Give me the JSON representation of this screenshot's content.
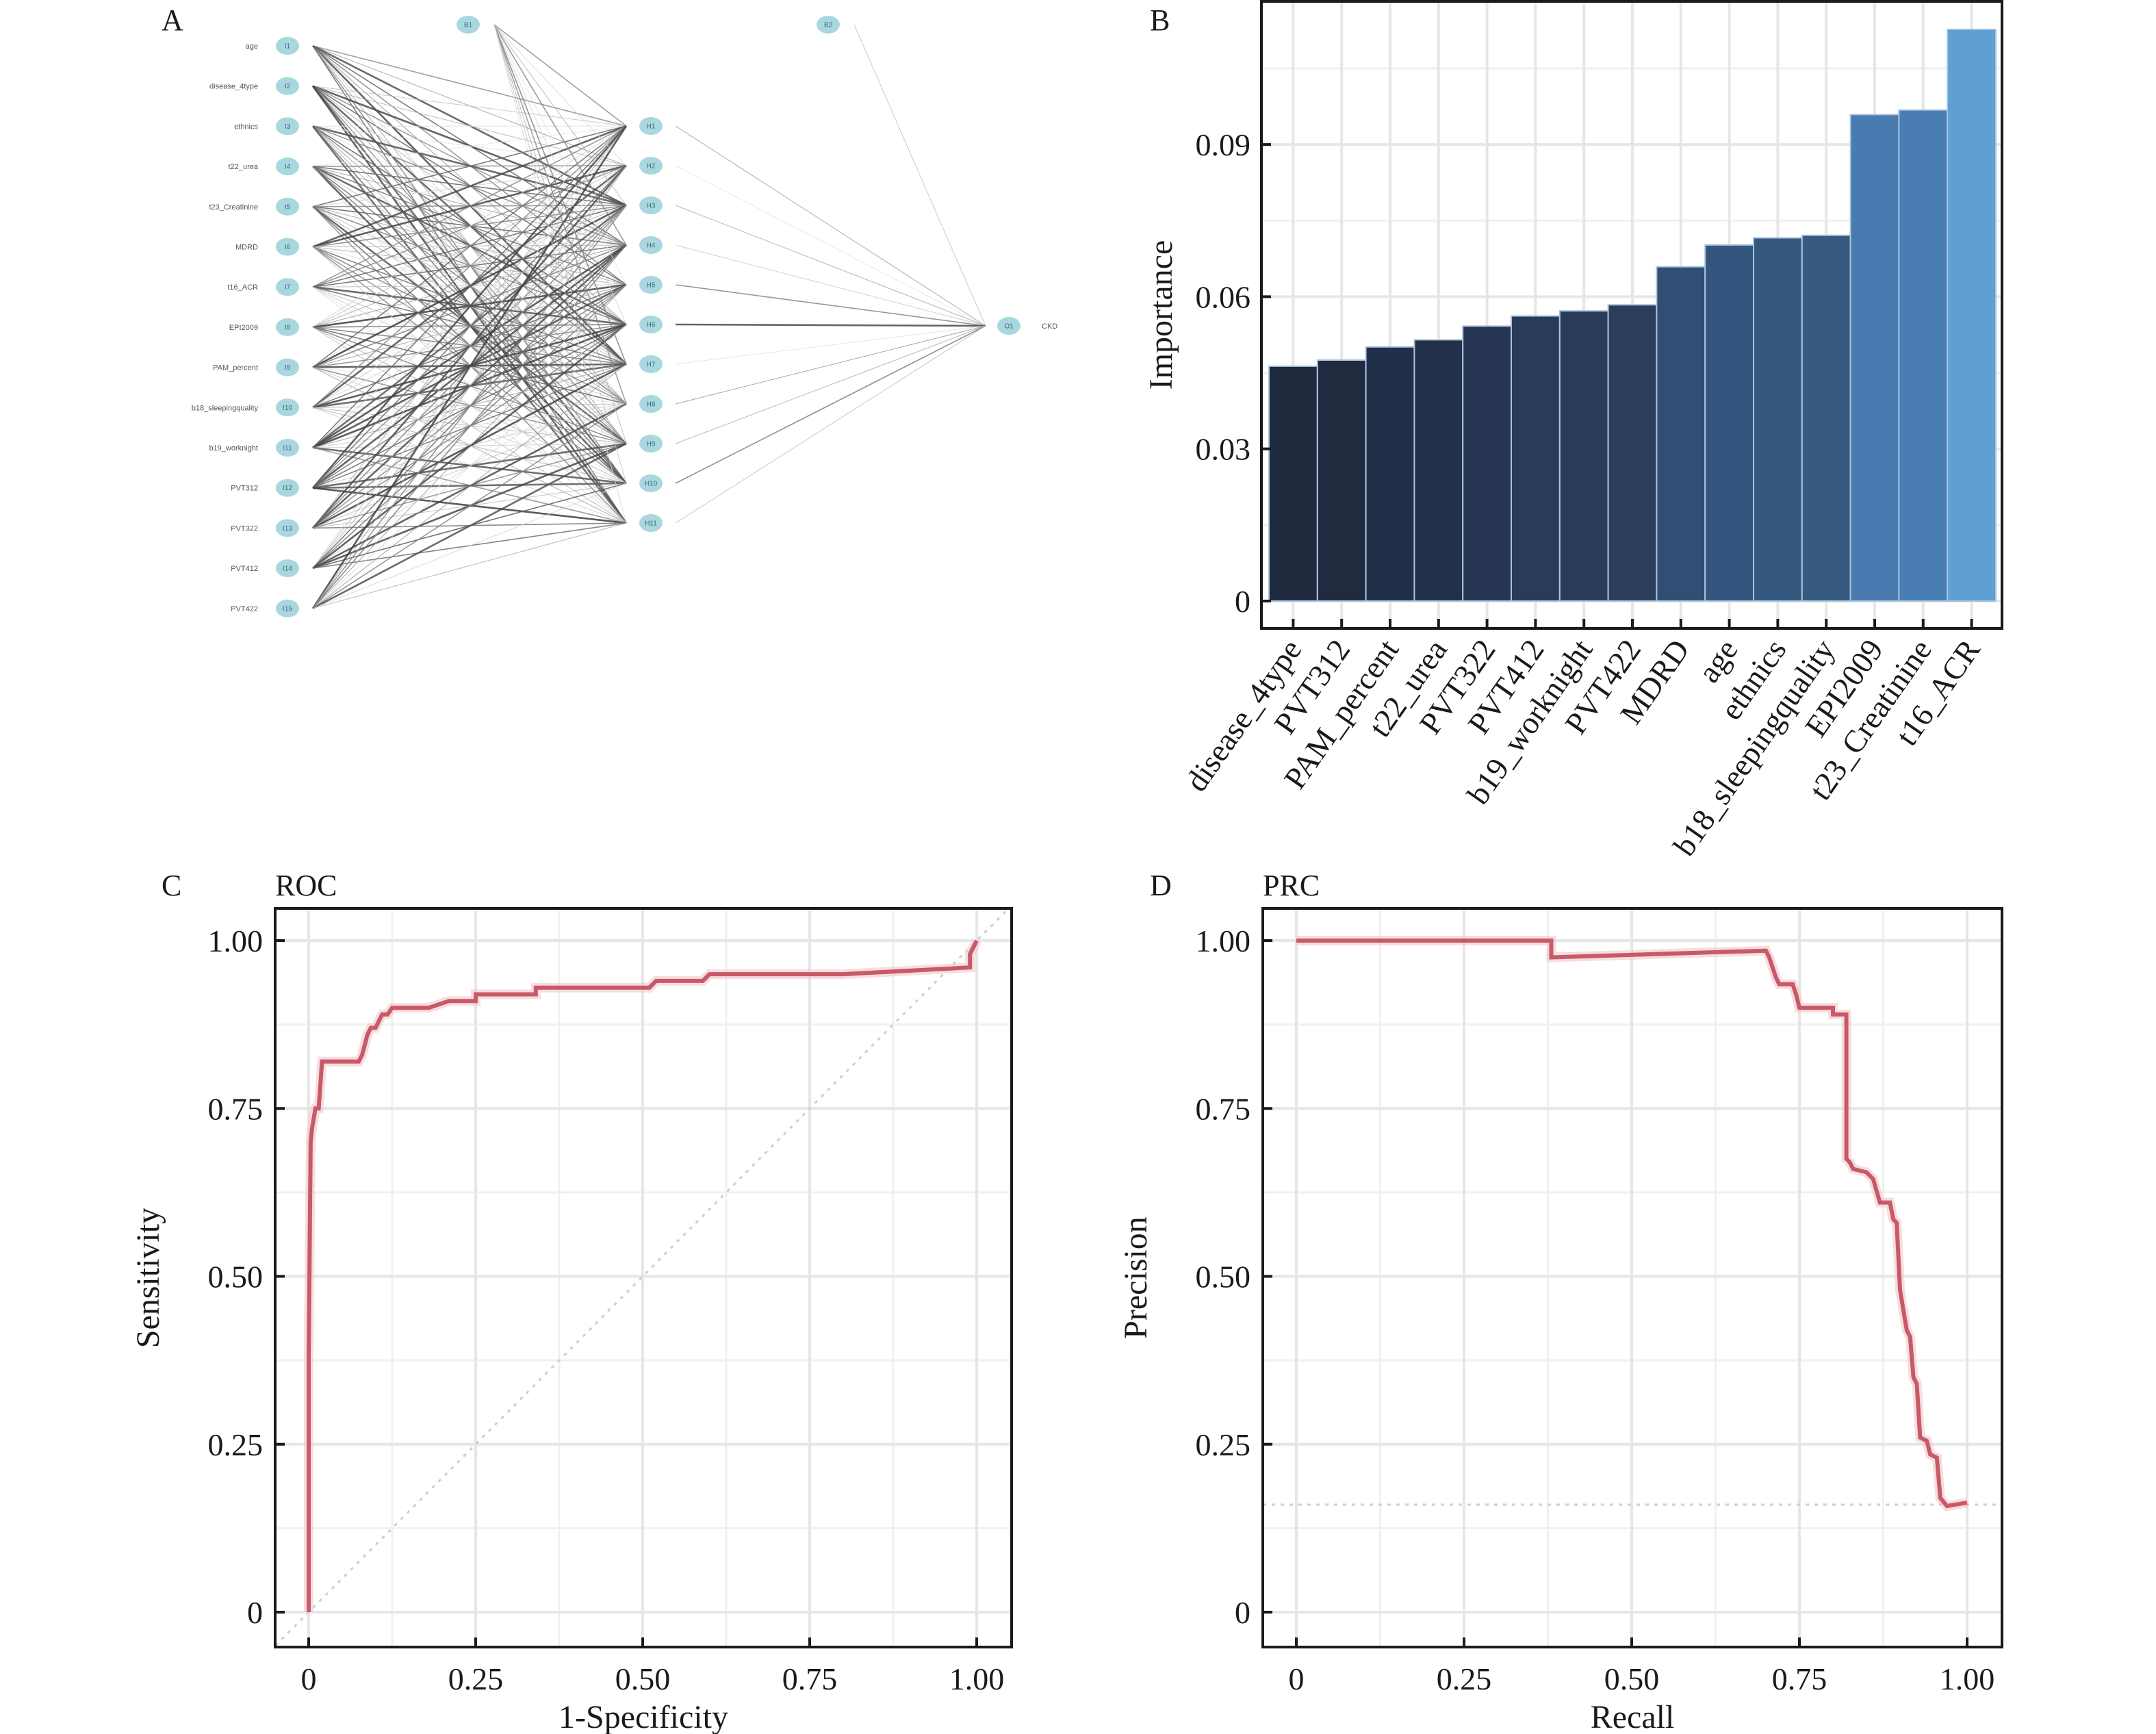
{
  "figure": {
    "panels": [
      {
        "letter": "A",
        "title": ""
      },
      {
        "letter": "B",
        "title": ""
      },
      {
        "letter": "C",
        "title": "ROC"
      },
      {
        "letter": "D",
        "title": "PRC"
      }
    ]
  },
  "chart_data": [
    {
      "panel": "A",
      "type": "network",
      "description": "Neural network diagram (15 inputs, 11 hidden, 1 output)",
      "input_nodes": [
        {
          "id": "I1",
          "label": "age"
        },
        {
          "id": "I2",
          "label": "disease_4type"
        },
        {
          "id": "I3",
          "label": "ethnics"
        },
        {
          "id": "I4",
          "label": "t22_urea"
        },
        {
          "id": "I5",
          "label": "t23_Creatinine"
        },
        {
          "id": "I6",
          "label": "MDRD"
        },
        {
          "id": "I7",
          "label": "t16_ACR"
        },
        {
          "id": "I8",
          "label": "EPI2009"
        },
        {
          "id": "I9",
          "label": "PAM_percent"
        },
        {
          "id": "I10",
          "label": "b18_sleepingquality"
        },
        {
          "id": "I11",
          "label": "b19_worknight"
        },
        {
          "id": "I12",
          "label": "PVT312"
        },
        {
          "id": "I13",
          "label": "PVT322"
        },
        {
          "id": "I14",
          "label": "PVT412"
        },
        {
          "id": "I15",
          "label": "PVT422"
        }
      ],
      "bias_nodes": [
        {
          "id": "B1"
        },
        {
          "id": "B2"
        }
      ],
      "hidden_nodes": [
        "H1",
        "H2",
        "H3",
        "H4",
        "H5",
        "H6",
        "H7",
        "H8",
        "H9",
        "H10",
        "H11"
      ],
      "output_nodes": [
        {
          "id": "O1",
          "label": "CKD"
        }
      ]
    },
    {
      "panel": "B",
      "type": "bar",
      "title": "",
      "xlabel": "",
      "ylabel": "Importance",
      "ylim": [
        -0.005,
        0.118
      ],
      "yticks": [
        0,
        0.03,
        0.06,
        0.09
      ],
      "ytick_labels": [
        "0",
        "0.03",
        "0.06",
        "0.09"
      ],
      "grid": true,
      "categories": [
        "disease_4type",
        "PVT312",
        "PAM_percent",
        "t22_urea",
        "PVT322",
        "PVT412",
        "b19_worknight",
        "PVT422",
        "MDRD",
        "age",
        "ethnics",
        "b18_sleepingquality",
        "EPI2009",
        "t23_Creatinine",
        "t16_ACR"
      ],
      "values": [
        0.0463,
        0.0475,
        0.0501,
        0.0515,
        0.0542,
        0.0562,
        0.0572,
        0.0584,
        0.0659,
        0.0702,
        0.0716,
        0.0721,
        0.0959,
        0.0968,
        0.1127
      ],
      "colors": [
        "#1f2a3e",
        "#202b3f",
        "#222f48",
        "#22304a",
        "#263552",
        "#2a3b58",
        "#2b3c5a",
        "#2c3e5c",
        "#314f74",
        "#34557d",
        "#35587f",
        "#375a80",
        "#4a7bb0",
        "#4a7db3",
        "#5ea0d3"
      ]
    },
    {
      "panel": "C",
      "type": "line",
      "title": "ROC",
      "xlabel": "1-Specificity",
      "ylabel": "Sensitivity",
      "xlim": [
        -0.05,
        1.05
      ],
      "ylim": [
        -0.05,
        1.05
      ],
      "xticks": [
        0,
        0.25,
        0.5,
        0.75,
        1.0
      ],
      "xtick_labels": [
        "0",
        "0.25",
        "0.50",
        "0.75",
        "1.00"
      ],
      "yticks": [
        0,
        0.25,
        0.5,
        0.75,
        1.0
      ],
      "ytick_labels": [
        "0",
        "0.25",
        "0.50",
        "0.75",
        "1.00"
      ],
      "grid": true,
      "color": "#c75a68",
      "reference_line": {
        "type": "diagonal",
        "from": [
          0,
          0
        ],
        "to": [
          1,
          1
        ]
      },
      "series": [
        {
          "name": "ROC",
          "x": [
            0,
            0,
            0.003,
            0.005,
            0.01,
            0.015,
            0.02,
            0.075,
            0.08,
            0.088,
            0.093,
            0.1,
            0.105,
            0.11,
            0.118,
            0.125,
            0.18,
            0.21,
            0.25,
            0.25,
            0.34,
            0.34,
            0.51,
            0.52,
            0.59,
            0.6,
            0.8,
            0.99,
            0.99,
            1.0
          ],
          "y": [
            0,
            0.38,
            0.7,
            0.72,
            0.75,
            0.75,
            0.82,
            0.82,
            0.83,
            0.86,
            0.87,
            0.87,
            0.88,
            0.89,
            0.89,
            0.9,
            0.9,
            0.91,
            0.91,
            0.92,
            0.92,
            0.93,
            0.93,
            0.94,
            0.94,
            0.95,
            0.95,
            0.96,
            0.98,
            1.0
          ]
        }
      ]
    },
    {
      "panel": "D",
      "type": "line",
      "title": "PRC",
      "xlabel": "Recall",
      "ylabel": "Precision",
      "xlim": [
        -0.05,
        1.05
      ],
      "ylim": [
        -0.05,
        1.05
      ],
      "xticks": [
        0,
        0.25,
        0.5,
        0.75,
        1.0
      ],
      "xtick_labels": [
        "0",
        "0.25",
        "0.50",
        "0.75",
        "1.00"
      ],
      "yticks": [
        0,
        0.25,
        0.5,
        0.75,
        1.0
      ],
      "ytick_labels": [
        "0",
        "0.25",
        "0.50",
        "0.75",
        "1.00"
      ],
      "grid": true,
      "color": "#c75a68",
      "reference_line": {
        "type": "horizontal",
        "y": 0.16
      },
      "series": [
        {
          "name": "PRC",
          "x": [
            0,
            0.38,
            0.38,
            0.7,
            0.705,
            0.71,
            0.715,
            0.72,
            0.74,
            0.745,
            0.75,
            0.8,
            0.8,
            0.82,
            0.82,
            0.825,
            0.83,
            0.85,
            0.86,
            0.87,
            0.885,
            0.89,
            0.895,
            0.9,
            0.91,
            0.915,
            0.92,
            0.925,
            0.93,
            0.94,
            0.945,
            0.955,
            0.96,
            0.97,
            1.0
          ],
          "y": [
            1.0,
            1.0,
            0.975,
            0.985,
            0.975,
            0.96,
            0.945,
            0.935,
            0.935,
            0.92,
            0.9,
            0.9,
            0.89,
            0.89,
            0.675,
            0.67,
            0.66,
            0.655,
            0.645,
            0.61,
            0.61,
            0.585,
            0.58,
            0.48,
            0.42,
            0.41,
            0.35,
            0.34,
            0.26,
            0.255,
            0.235,
            0.23,
            0.17,
            0.158,
            0.163
          ]
        }
      ]
    }
  ]
}
